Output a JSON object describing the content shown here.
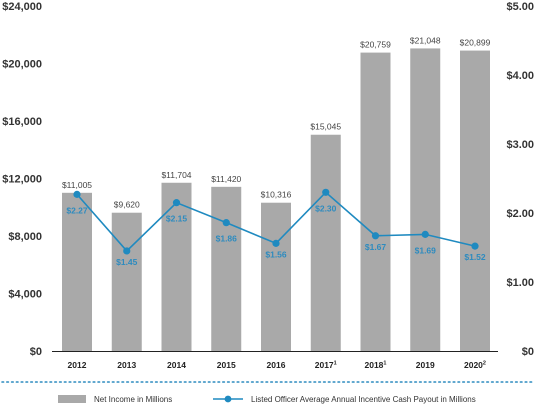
{
  "chart_data": {
    "type": "bar",
    "categories": [
      "2012",
      "2013",
      "2014",
      "2015",
      "2016",
      "2017",
      "2018",
      "2019",
      "2020"
    ],
    "category_superscripts": [
      "",
      "",
      "",
      "",
      "",
      "1",
      "1",
      "",
      "2"
    ],
    "series": [
      {
        "name": "Net Income in Millions",
        "type": "bar",
        "axis": "left",
        "values": [
          11005,
          9620,
          11704,
          11420,
          10316,
          15045,
          20759,
          21048,
          20899
        ],
        "labels": [
          "$11,005",
          "$9,620",
          "$11,704",
          "$11,420",
          "$10,316",
          "$15,045",
          "$20,759",
          "$21,048",
          "$20,899"
        ],
        "color": "#a9a9a9"
      },
      {
        "name": "Listed Officer Average Annual Incentive Cash Payout in Millions",
        "type": "line",
        "axis": "right",
        "values": [
          2.27,
          1.45,
          2.15,
          1.86,
          1.56,
          2.3,
          1.67,
          1.69,
          1.52
        ],
        "labels": [
          "$2.27",
          "$1.45",
          "$2.15",
          "$1.86",
          "$1.56",
          "$2.30",
          "$1.67",
          "$1.69",
          "$1.52"
        ],
        "color": "#1f8ac0"
      }
    ],
    "y_left": {
      "ylim": [
        0,
        24000
      ],
      "ticks": [
        0,
        4000,
        8000,
        12000,
        16000,
        20000,
        24000
      ],
      "tick_labels": [
        "$0",
        "$4,000",
        "$8,000",
        "$12,000",
        "$16,000",
        "$20,000",
        "$24,000"
      ]
    },
    "y_right": {
      "ylim": [
        0,
        5
      ],
      "ticks": [
        0,
        1,
        2,
        3,
        4,
        5
      ],
      "tick_labels": [
        "$0",
        "$1.00",
        "$2.00",
        "$3.00",
        "$4.00",
        "$5.00"
      ]
    },
    "grid": false,
    "legend_placement": "bottom"
  }
}
